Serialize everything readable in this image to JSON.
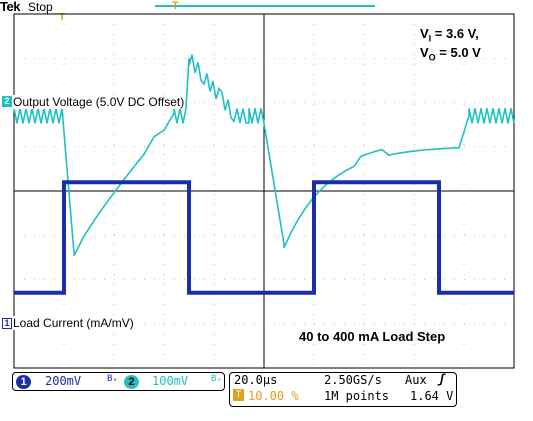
{
  "header": {
    "brand": "Tek",
    "status": "Stop",
    "trigger_marker": "T"
  },
  "channels": {
    "ch2": {
      "marker": "2",
      "label": "Output Voltage (5.0V DC Offset)",
      "color": "#20c0c0"
    },
    "ch1": {
      "marker": "1",
      "label": "Load Current (mA/mV)",
      "color": "#1a2fa5"
    }
  },
  "conditions": {
    "vi_label": "V",
    "vi_sub": "I",
    "vi_value": " = 3.6 V,",
    "vo_label": "V",
    "vo_sub": "O",
    "vo_value": " = 5.0 V"
  },
  "annotation": "40 to 400 mA Load Step",
  "readout": {
    "ch1_badge": "1",
    "ch1_scale": "200mV",
    "ch1_bw": "Bᵥ",
    "ch2_badge": "2",
    "ch2_scale": "100mV",
    "ch2_bw": "Bᵥ",
    "timebase": "20.0μs",
    "sample_rate": "2.50GS/s",
    "trigger_source": "Aux",
    "trigger_slope": "ʃ",
    "trigger_pos": "10.00 %",
    "record_length": "1M points",
    "trigger_level": "1.64 V",
    "trigger_pos_icon": "T"
  },
  "chart_data": {
    "type": "line",
    "title": "",
    "x_unit": "μs",
    "x_per_div": 20.0,
    "x_divisions": 10,
    "trigger_position_pct": 10.0,
    "series": [
      {
        "name": "Output Voltage (5.0V DC Offset)",
        "channel": 2,
        "scale_per_div": "100mV",
        "color": "#20c0c0",
        "y_divisions": 8,
        "x_div": [
          0.0,
          1.0,
          1.2,
          2.0,
          3.2,
          3.5,
          4.7,
          5.0,
          5.4,
          6.0,
          7.0,
          8.0,
          8.9,
          9.1,
          10.0
        ],
        "y_div": [
          5.7,
          5.7,
          2.6,
          4.0,
          5.7,
          7.0,
          5.7,
          5.7,
          2.8,
          4.6,
          5.0,
          5.1,
          5.1,
          5.7,
          5.7
        ]
      },
      {
        "name": "Load Current (mA/mV)",
        "channel": 1,
        "scale_per_div": "200mV",
        "color": "#1a2fa5",
        "y_divisions": 8,
        "x_div": [
          0.0,
          1.0,
          1.0,
          3.5,
          3.5,
          6.0,
          6.0,
          8.5,
          8.5,
          10.0
        ],
        "y_div": [
          1.7,
          1.7,
          4.2,
          4.2,
          1.7,
          1.7,
          4.2,
          4.2,
          1.7,
          1.7
        ]
      }
    ],
    "annotations": [
      "40 to 400 mA Load Step"
    ]
  }
}
